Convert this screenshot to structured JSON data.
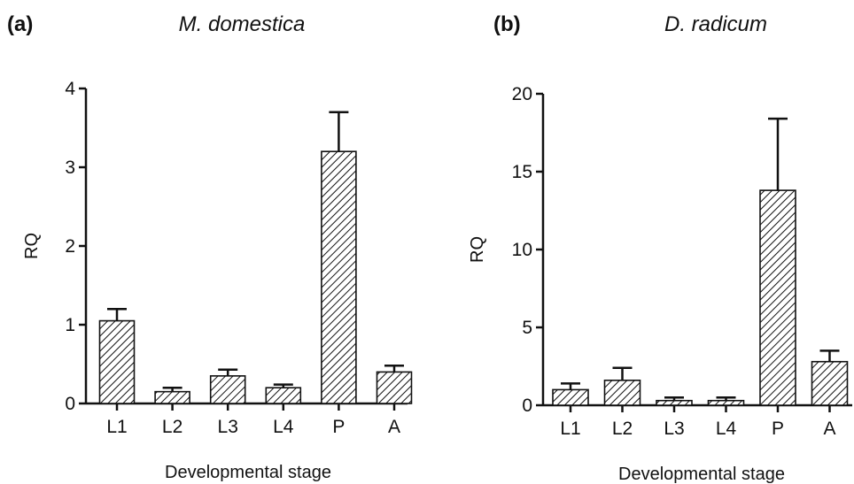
{
  "chart_data": [
    {
      "type": "bar",
      "panel_label": "(a)",
      "title": "M. domestica",
      "xlabel": "Developmental stage",
      "ylabel": "RQ",
      "categories": [
        "L1",
        "L2",
        "L3",
        "L4",
        "P",
        "A"
      ],
      "values": [
        1.05,
        0.15,
        0.35,
        0.2,
        3.2,
        0.4
      ],
      "error_upper": [
        0.15,
        0.05,
        0.08,
        0.04,
        0.5,
        0.08
      ],
      "ylim": [
        0,
        4
      ],
      "yticks": [
        0,
        1,
        2,
        3,
        4
      ],
      "grid": false,
      "legend": "none"
    },
    {
      "type": "bar",
      "panel_label": "(b)",
      "title": "D. radicum",
      "xlabel": "Developmental stage",
      "ylabel": "RQ",
      "categories": [
        "L1",
        "L2",
        "L3",
        "L4",
        "P",
        "A"
      ],
      "values": [
        1.0,
        1.6,
        0.3,
        0.3,
        13.8,
        2.8
      ],
      "error_upper": [
        0.4,
        0.8,
        0.2,
        0.2,
        4.6,
        0.7
      ],
      "ylim": [
        0,
        20
      ],
      "yticks": [
        0,
        5,
        10,
        15,
        20
      ],
      "grid": false,
      "legend": "none"
    }
  ]
}
